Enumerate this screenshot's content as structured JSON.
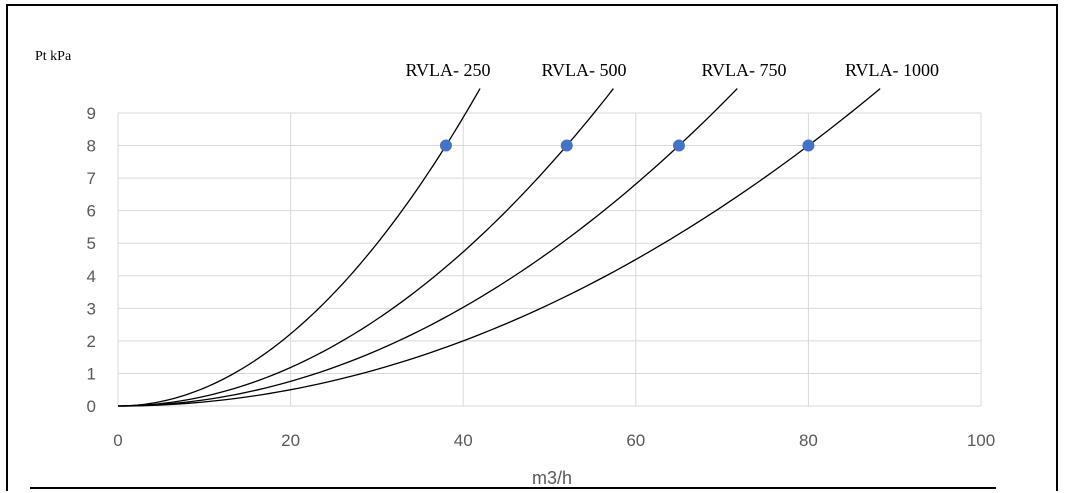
{
  "chart_data": {
    "type": "line",
    "ylabel": "Pt kPa",
    "xlabel": "m3/h",
    "xlim": [
      0,
      100
    ],
    "ylim": [
      0,
      9
    ],
    "x_ticks": [
      0,
      20,
      40,
      60,
      80,
      100
    ],
    "y_ticks": [
      0,
      1,
      2,
      3,
      4,
      5,
      6,
      7,
      8,
      9
    ],
    "grid": true,
    "series": [
      {
        "name": "RVLA- 250",
        "rated_flow": 38,
        "rated_pressure": 8
      },
      {
        "name": "RVLA- 500",
        "rated_flow": 52,
        "rated_pressure": 8
      },
      {
        "name": "RVLA- 750",
        "rated_flow": 65,
        "rated_pressure": 8
      },
      {
        "name": "RVLA- 1000",
        "rated_flow": 80,
        "rated_pressure": 8
      }
    ],
    "marker_color": "#4472c4",
    "line_color": "#000000"
  }
}
